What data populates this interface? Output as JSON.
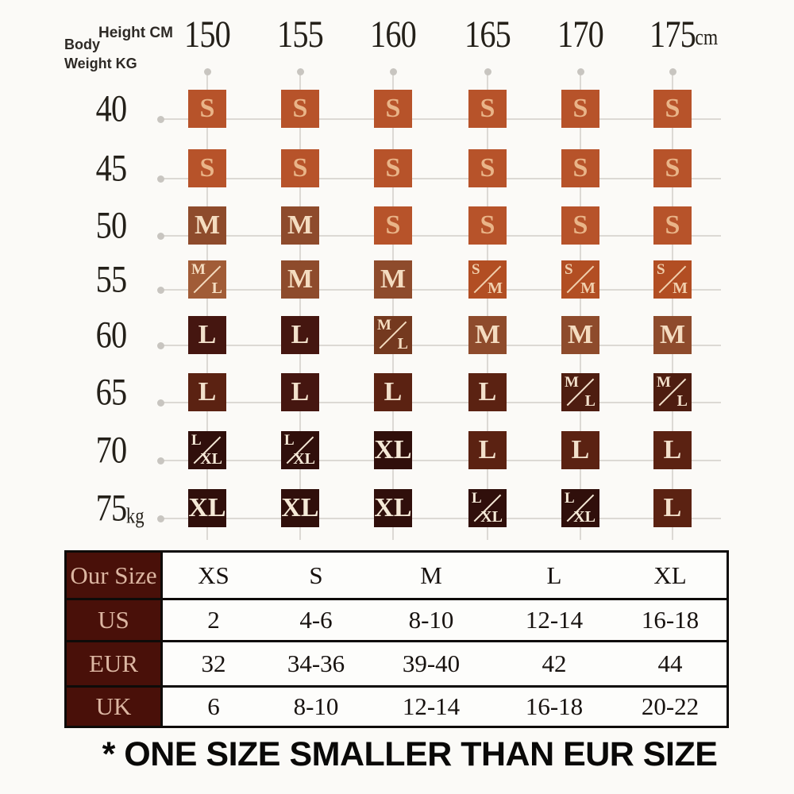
{
  "header": {
    "height_label": "Height CM",
    "body_label": "Body",
    "weight_label": "Weight KG"
  },
  "grid": {
    "height_unit": "cm",
    "weight_unit": "kg",
    "cell_colors": [
      [
        "s",
        "s",
        "s",
        "s",
        "s",
        "s"
      ],
      [
        "s",
        "s",
        "s",
        "s",
        "s",
        "s"
      ],
      [
        "m",
        "m",
        "s",
        "s",
        "s",
        "s"
      ],
      [
        "mlL",
        "m",
        "m",
        "sm",
        "sm",
        "sm"
      ],
      [
        "lD",
        "lD",
        "mlM",
        "m",
        "m",
        "m"
      ],
      [
        "lM",
        "lD",
        "lM",
        "lM",
        "mlD",
        "mlD"
      ],
      [
        "xl",
        "xl",
        "xl",
        "lM",
        "lM",
        "lM"
      ],
      [
        "xl",
        "xl",
        "xl",
        "xl",
        "xl",
        "lM"
      ]
    ]
  },
  "colors": {
    "cell_palette": {
      "s": {
        "bg": "#b7532a",
        "fg": "#e9b488"
      },
      "sm": {
        "bg": "#b24e23",
        "fg": "#f0cfad"
      },
      "m": {
        "bg": "#8e4b2c",
        "fg": "#f4dcc0"
      },
      "mlL": {
        "bg": "#a15c37",
        "fg": "#f4dcc0"
      },
      "mlM": {
        "bg": "#74391f",
        "fg": "#f4dcc0"
      },
      "mlD": {
        "bg": "#4e1d10",
        "fg": "#f2e0cb"
      },
      "lD": {
        "bg": "#451610",
        "fg": "#f2e0cb"
      },
      "lM": {
        "bg": "#5b2212",
        "fg": "#f2e0cb"
      },
      "xl": {
        "bg": "#300f0b",
        "fg": "#f5e9d7"
      }
    },
    "table_header_bg": "#491009",
    "table_header_fg": "#dcb6a2",
    "line": "#dcd9d4"
  },
  "chart_data": {
    "type": "heatmap",
    "x": [
      "150",
      "155",
      "160",
      "165",
      "170",
      "175"
    ],
    "xlabel": "Height CM",
    "y": [
      "40",
      "45",
      "50",
      "55",
      "60",
      "65",
      "70",
      "75"
    ],
    "ylabel": "Body Weight KG",
    "values": [
      [
        "S",
        "S",
        "S",
        "S",
        "S",
        "S"
      ],
      [
        "S",
        "S",
        "S",
        "S",
        "S",
        "S"
      ],
      [
        "M",
        "M",
        "S",
        "S",
        "S",
        "S"
      ],
      [
        "M/L",
        "M",
        "M",
        "S/M",
        "S/M",
        "S/M"
      ],
      [
        "L",
        "L",
        "M/L",
        "M",
        "M",
        "M"
      ],
      [
        "L",
        "L",
        "L",
        "L",
        "M/L",
        "M/L"
      ],
      [
        "L/XL",
        "L/XL",
        "XL",
        "L",
        "L",
        "L"
      ],
      [
        "XL",
        "XL",
        "XL",
        "L/XL",
        "L/XL",
        "L"
      ]
    ]
  },
  "conversion_table": {
    "corner_label": "Our Size",
    "columns": [
      "XS",
      "S",
      "M",
      "L",
      "XL"
    ],
    "rows": [
      {
        "label": "US",
        "values": [
          "2",
          "4-6",
          "8-10",
          "12-14",
          "16-18"
        ]
      },
      {
        "label": "EUR",
        "values": [
          "32",
          "34-36",
          "39-40",
          "42",
          "44"
        ]
      },
      {
        "label": "UK",
        "values": [
          "6",
          "8-10",
          "12-14",
          "16-18",
          "20-22"
        ]
      }
    ]
  },
  "footnote": "* ONE SIZE SMALLER THAN EUR SIZE"
}
